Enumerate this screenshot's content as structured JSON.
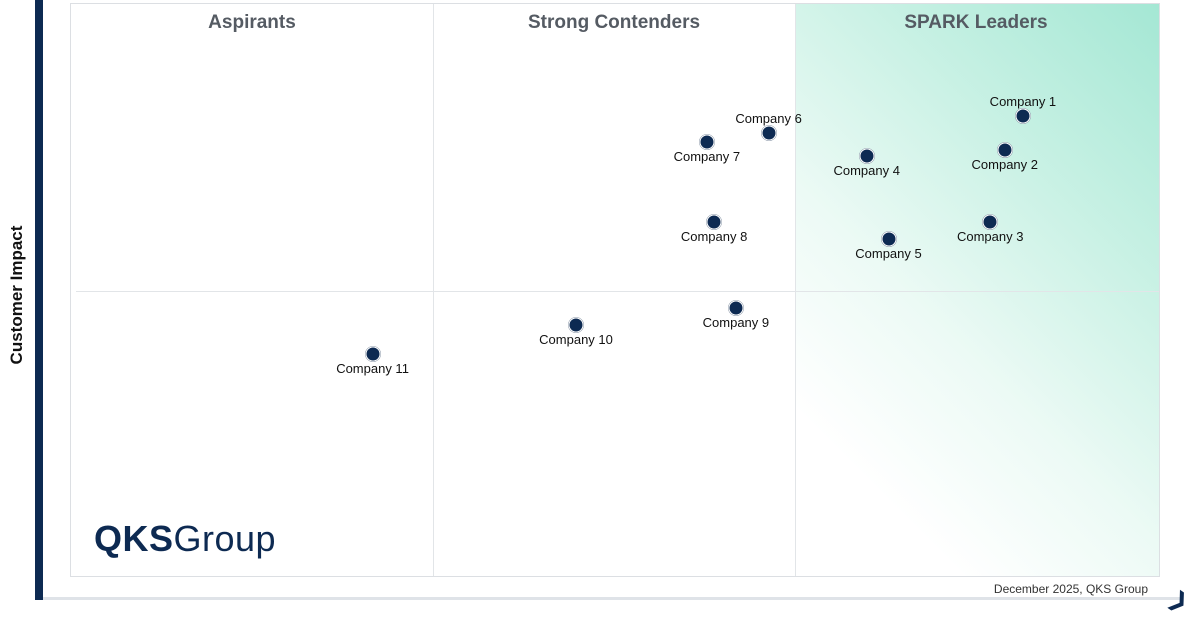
{
  "chart_data": {
    "type": "scatter",
    "ylabel": "Customer Impact",
    "xlabel": "",
    "quadrants": [
      "Aspirants",
      "Strong Contenders",
      "SPARK Leaders"
    ],
    "xlim": [
      0,
      3
    ],
    "ylim": [
      0,
      2
    ],
    "grid": true,
    "accent_color": "#0d2a52",
    "leader_highlight_color": "#a4e7d4",
    "points": [
      {
        "name": "Company 1",
        "x": 2.62,
        "y": 1.61,
        "label_side": "above"
      },
      {
        "name": "Company 2",
        "x": 2.57,
        "y": 1.49,
        "label_side": "below"
      },
      {
        "name": "Company 3",
        "x": 2.53,
        "y": 1.24,
        "label_side": "below"
      },
      {
        "name": "Company 4",
        "x": 2.19,
        "y": 1.47,
        "label_side": "below"
      },
      {
        "name": "Company 5",
        "x": 2.25,
        "y": 1.18,
        "label_side": "below"
      },
      {
        "name": "Company 6",
        "x": 1.92,
        "y": 1.55,
        "label_side": "above"
      },
      {
        "name": "Company 7",
        "x": 1.75,
        "y": 1.52,
        "label_side": "below"
      },
      {
        "name": "Company 8",
        "x": 1.77,
        "y": 1.24,
        "label_side": "below"
      },
      {
        "name": "Company 9",
        "x": 1.83,
        "y": 0.94,
        "label_side": "below"
      },
      {
        "name": "Company 10",
        "x": 1.39,
        "y": 0.88,
        "label_side": "below"
      },
      {
        "name": "Company 11",
        "x": 0.83,
        "y": 0.78,
        "label_side": "below"
      }
    ]
  },
  "logo": {
    "bold": "QKS",
    "light": "Group"
  },
  "footer": "December 2025, QKS Group"
}
